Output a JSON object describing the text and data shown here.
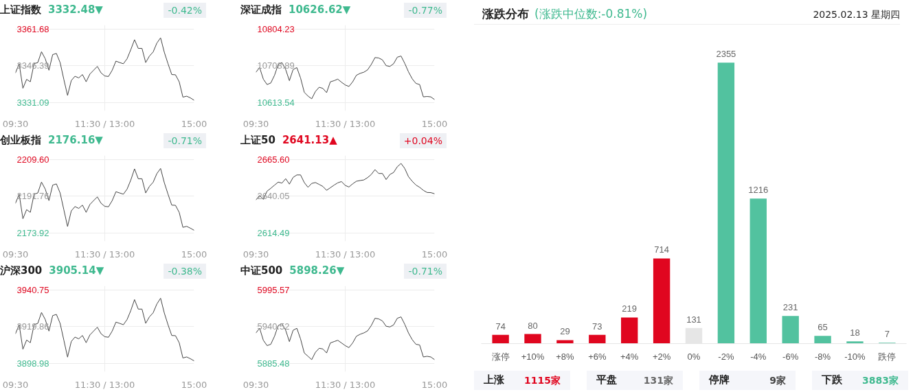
{
  "chart_data": [
    {
      "type": "line",
      "title": "上证指数",
      "subtitle": "3332.48▼",
      "annotations": [
        "-0.42%"
      ],
      "grid": true,
      "categories": [
        "09:30",
        null,
        null,
        null,
        null,
        null,
        null,
        null,
        null,
        null,
        null,
        null,
        null,
        null,
        null,
        null,
        null,
        null,
        null,
        null,
        null,
        null,
        null,
        null,
        "11:30 / 13:00",
        null,
        null,
        null,
        null,
        null,
        null,
        null,
        null,
        null,
        null,
        null,
        null,
        null,
        null,
        null,
        null,
        null,
        null,
        null,
        null,
        null,
        null,
        null,
        "15:00"
      ],
      "ylim": [
        3327.58,
        3363.31
      ],
      "yticks": [
        {
          "value": 3331.09,
          "label": "3331.09"
        },
        {
          "value": 3346.39,
          "label": "3346.39"
        },
        {
          "value": 3361.68,
          "label": "3361.68"
        }
      ],
      "series": [
        {
          "color": "#444444",
          "values": [
            3343.4,
            3347.2,
            3337.0,
            3340.7,
            3339.7,
            3347.2,
            3347.7,
            3352.2,
            3349.3,
            3344.5,
            3351.0,
            3351.5,
            3347.7,
            3340.7,
            3334.0,
            3340.2,
            3342.0,
            3341.3,
            3342.7,
            3339.7,
            3342.9,
            3344.5,
            3346.1,
            3343.4,
            3342.1,
            3341.9,
            3344.5,
            3348.3,
            3347.7,
            3347.2,
            3349.3,
            3353.1,
            3357.2,
            3353.6,
            3353.6,
            3347.7,
            3350.4,
            3352.1,
            3355.8,
            3358.0,
            3352.0,
            3347.2,
            3342.7,
            3342.6,
            3339.7,
            3333.3,
            3333.7,
            3333.0,
            3332.0
          ]
        }
      ]
    },
    {
      "type": "line",
      "title": "深证成指",
      "subtitle": "10626.62▼",
      "annotations": [
        "-0.77%"
      ],
      "grid": true,
      "categories": [
        "09:30",
        null,
        null,
        null,
        null,
        null,
        null,
        null,
        null,
        null,
        null,
        null,
        null,
        null,
        null,
        null,
        null,
        null,
        null,
        null,
        null,
        null,
        null,
        null,
        "11:30 / 13:00",
        null,
        null,
        null,
        null,
        null,
        null,
        null,
        null,
        null,
        null,
        null,
        null,
        null,
        null,
        null,
        null,
        null,
        null,
        null,
        null,
        null,
        null,
        null,
        "15:00"
      ],
      "ylim": [
        10591.65,
        10814.39
      ],
      "yticks": [
        {
          "value": 10613.54,
          "label": "10613.54"
        },
        {
          "value": 10708.89,
          "label": "10708.89"
        },
        {
          "value": 10804.23,
          "label": "10804.23"
        }
      ],
      "series": [
        {
          "color": "#444444",
          "values": [
            10692,
            10704,
            10674,
            10660,
            10664,
            10684,
            10712,
            10717,
            10699,
            10670,
            10699,
            10704,
            10677,
            10640,
            10630,
            10623,
            10642,
            10653,
            10650,
            10639,
            10667,
            10670,
            10674,
            10666,
            10659,
            10655,
            10667,
            10684,
            10689,
            10692,
            10698,
            10712,
            10730,
            10729,
            10724,
            10709,
            10707,
            10714,
            10731,
            10734,
            10715,
            10693,
            10675,
            10663,
            10660,
            10628,
            10629,
            10628,
            10621
          ]
        }
      ]
    },
    {
      "type": "line",
      "title": "创业板指",
      "subtitle": "2176.16▼",
      "annotations": [
        "-0.71%"
      ],
      "grid": true,
      "categories": [
        "09:30",
        null,
        null,
        null,
        null,
        null,
        null,
        null,
        null,
        null,
        null,
        null,
        null,
        null,
        null,
        null,
        null,
        null,
        null,
        null,
        null,
        null,
        null,
        null,
        "11:30 / 13:00",
        null,
        null,
        null,
        null,
        null,
        null,
        null,
        null,
        null,
        null,
        null,
        null,
        null,
        null,
        null,
        null,
        null,
        null,
        null,
        null,
        null,
        null,
        null,
        "15:00"
      ],
      "ylim": [
        2169.82,
        2211.5
      ],
      "yticks": [
        {
          "value": 2173.92,
          "label": "2173.92"
        },
        {
          "value": 2191.76,
          "label": "2191.76"
        },
        {
          "value": 2209.6,
          "label": "2209.60"
        }
      ],
      "series": [
        {
          "color": "#444444",
          "values": [
            2188.3,
            2192.7,
            2180.8,
            2185.2,
            2183.9,
            2192.7,
            2193.3,
            2198.6,
            2195.2,
            2189.6,
            2197.1,
            2197.7,
            2193.3,
            2185.2,
            2177.0,
            2184.6,
            2186.7,
            2185.8,
            2187.4,
            2183.9,
            2187.7,
            2189.6,
            2191.4,
            2188.3,
            2186.8,
            2186.6,
            2189.6,
            2193.9,
            2193.3,
            2192.7,
            2195.2,
            2199.6,
            2205.0,
            2200.2,
            2200.2,
            2193.3,
            2196.5,
            2198.5,
            2202.7,
            2205.2,
            2198.3,
            2192.7,
            2187.4,
            2187.3,
            2183.9,
            2176.6,
            2177.1,
            2176.2,
            2175.2
          ]
        }
      ]
    },
    {
      "type": "line",
      "title": "上证50",
      "subtitle": "2641.13▲",
      "annotations": [
        "+0.04%"
      ],
      "grid": true,
      "categories": [
        "09:30",
        null,
        null,
        null,
        null,
        null,
        null,
        null,
        null,
        null,
        null,
        null,
        null,
        null,
        null,
        null,
        null,
        null,
        null,
        null,
        null,
        null,
        null,
        null,
        "11:30 / 13:00",
        null,
        null,
        null,
        null,
        null,
        null,
        null,
        null,
        null,
        null,
        null,
        null,
        null,
        null,
        null,
        null,
        null,
        null,
        null,
        null,
        null,
        null,
        null,
        "15:00"
      ],
      "ylim": [
        2608.62,
        2668.32
      ],
      "yticks": [
        {
          "value": 2614.49,
          "label": "2614.49"
        },
        {
          "value": 2640.05,
          "label": "2640.05"
        },
        {
          "value": 2665.6,
          "label": "2665.60"
        }
      ],
      "series": [
        {
          "color": "#444444",
          "values": [
            2637.4,
            2640.5,
            2637.8,
            2643.5,
            2645.5,
            2647.7,
            2649.8,
            2649.1,
            2652.2,
            2648.4,
            2653.1,
            2654.8,
            2654.8,
            2649.5,
            2646.2,
            2648.9,
            2649.5,
            2648.2,
            2646.8,
            2644.1,
            2645.9,
            2647.7,
            2649.3,
            2650.2,
            2647.5,
            2646.4,
            2648.6,
            2650.4,
            2650.9,
            2651.3,
            2652.9,
            2655.1,
            2658.5,
            2655.8,
            2655.8,
            2651.6,
            2655.1,
            2656.5,
            2660.5,
            2662.8,
            2659.3,
            2653.6,
            2650.4,
            2647.8,
            2646.2,
            2644.1,
            2642.6,
            2642.5,
            2641.7
          ]
        }
      ]
    },
    {
      "type": "line",
      "title": "沪深300",
      "subtitle": "3905.14▼",
      "annotations": [
        "-0.38%"
      ],
      "grid": true,
      "categories": [
        "09:30",
        null,
        null,
        null,
        null,
        null,
        null,
        null,
        null,
        null,
        null,
        null,
        null,
        null,
        null,
        null,
        null,
        null,
        null,
        null,
        null,
        null,
        null,
        null,
        "11:30 / 13:00",
        null,
        null,
        null,
        null,
        null,
        null,
        null,
        null,
        null,
        null,
        null,
        null,
        null,
        null,
        null,
        null,
        null,
        null,
        null,
        null,
        null,
        null,
        null,
        "15:00"
      ],
      "ylim": [
        3894.18,
        3942.98
      ],
      "yticks": [
        {
          "value": 3898.98,
          "label": "3898.98"
        },
        {
          "value": 3919.86,
          "label": "3919.86"
        },
        {
          "value": 3940.75,
          "label": "3940.75"
        }
      ],
      "series": [
        {
          "color": "#444444",
          "values": [
            3915.8,
            3920.9,
            3907.0,
            3912.2,
            3910.7,
            3920.9,
            3921.7,
            3927.9,
            3923.9,
            3917.3,
            3926.1,
            3926.8,
            3921.7,
            3912.2,
            3902.5,
            3911.4,
            3913.9,
            3912.9,
            3914.8,
            3910.7,
            3915.1,
            3917.3,
            3919.5,
            3915.8,
            3914.1,
            3913.8,
            3917.3,
            3922.4,
            3921.7,
            3920.9,
            3923.9,
            3929.0,
            3935.2,
            3929.8,
            3929.8,
            3921.7,
            3925.4,
            3927.7,
            3932.7,
            3936.0,
            3927.6,
            3920.9,
            3914.8,
            3914.7,
            3910.7,
            3902.0,
            3902.6,
            3901.6,
            3900.4
          ]
        }
      ]
    },
    {
      "type": "line",
      "title": "中证500",
      "subtitle": "5898.26▼",
      "annotations": [
        "-0.71%"
      ],
      "grid": true,
      "categories": [
        "09:30",
        null,
        null,
        null,
        null,
        null,
        null,
        null,
        null,
        null,
        null,
        null,
        null,
        null,
        null,
        null,
        null,
        null,
        null,
        null,
        null,
        null,
        null,
        null,
        "11:30 / 13:00",
        null,
        null,
        null,
        null,
        null,
        null,
        null,
        null,
        null,
        null,
        null,
        null,
        null,
        null,
        null,
        null,
        null,
        null,
        null,
        null,
        null,
        null,
        null,
        "15:00"
      ],
      "ylim": [
        5872.84,
        6001.44
      ],
      "yticks": [
        {
          "value": 5885.48,
          "label": "5885.48"
        },
        {
          "value": 5940.52,
          "label": "5940.52"
        },
        {
          "value": 5995.57,
          "label": "5995.57"
        }
      ],
      "series": [
        {
          "color": "#444444",
          "values": [
            5931,
            5938,
            5920,
            5912,
            5914,
            5926,
            5942,
            5945,
            5935,
            5918,
            5935,
            5938,
            5922,
            5901,
            5896,
            5891,
            5902,
            5908,
            5907,
            5901,
            5916,
            5918,
            5920,
            5916,
            5912,
            5909,
            5916,
            5926,
            5929,
            5931,
            5934,
            5942,
            5953,
            5952,
            5949,
            5941,
            5940,
            5943,
            5953,
            5955,
            5944,
            5931,
            5921,
            5914,
            5913,
            5895,
            5896,
            5895,
            5891
          ]
        }
      ]
    },
    {
      "type": "bar",
      "title": "涨跌分布",
      "subtitle": "(涨跌中位数:-0.81%)",
      "annotations": [
        "2025.02.13 星期四",
        "上涨",
        "1115家",
        "平盘",
        "131家",
        "停牌",
        "9家",
        "下跌",
        "3883家"
      ],
      "categories": [
        "涨停",
        "+10%",
        "+8%",
        "+6%",
        "+4%",
        "+2%",
        "0%",
        "-2%",
        "-4%",
        "-6%",
        "-8%",
        "-10%",
        "跌停"
      ],
      "values": [
        74,
        80,
        29,
        73,
        219,
        714,
        131,
        2355,
        1216,
        231,
        65,
        18,
        7
      ],
      "colors": [
        "#e0061f",
        "#e0061f",
        "#e0061f",
        "#e0061f",
        "#e0061f",
        "#e0061f",
        "#e6e6e6",
        "#52c29f",
        "#52c29f",
        "#52c29f",
        "#52c29f",
        "#52c29f",
        "#52c29f"
      ],
      "data_labels": true
    }
  ]
}
